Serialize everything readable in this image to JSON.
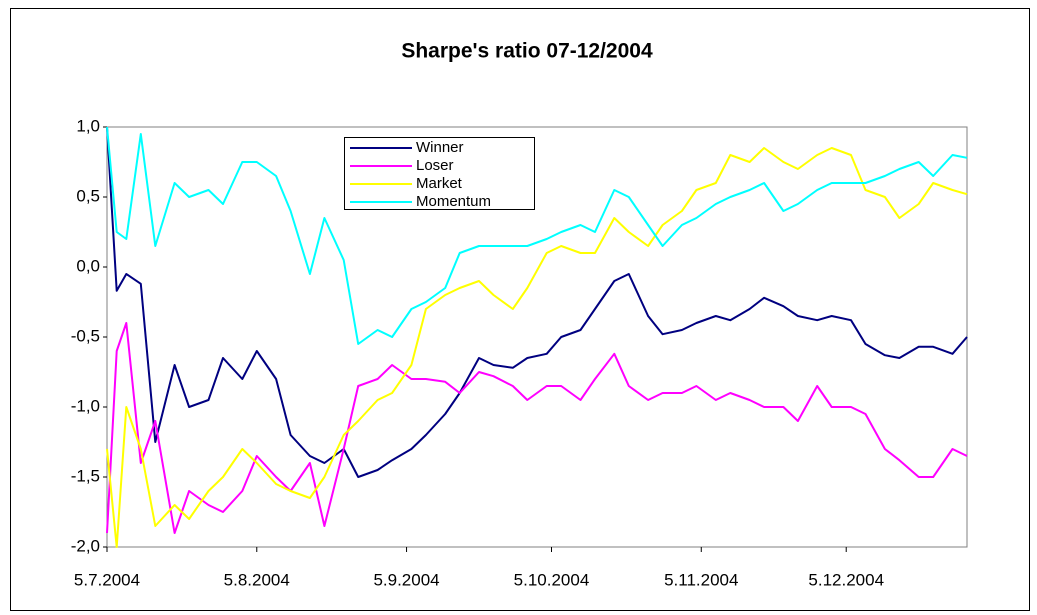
{
  "chart_data": {
    "type": "line",
    "title": "Sharpe's ratio 07-12/2004",
    "x": [
      "5.7.2004",
      "7.7.2004",
      "9.7.2004",
      "12.7.2004",
      "15.7.2004",
      "19.7.2004",
      "22.7.2004",
      "26.7.2004",
      "29.7.2004",
      "2.8.2004",
      "5.8.2004",
      "9.8.2004",
      "12.8.2004",
      "16.8.2004",
      "19.8.2004",
      "23.8.2004",
      "26.8.2004",
      "30.8.2004",
      "2.9.2004",
      "6.9.2004",
      "9.9.2004",
      "13.9.2004",
      "16.9.2004",
      "20.9.2004",
      "23.9.2004",
      "27.9.2004",
      "30.9.2004",
      "4.10.2004",
      "7.10.2004",
      "11.10.2004",
      "14.10.2004",
      "18.10.2004",
      "21.10.2004",
      "25.10.2004",
      "28.10.2004",
      "1.11.2004",
      "4.11.2004",
      "8.11.2004",
      "11.11.2004",
      "15.11.2004",
      "18.11.2004",
      "22.11.2004",
      "25.11.2004",
      "29.11.2004",
      "2.12.2004",
      "6.12.2004",
      "9.12.2004",
      "13.12.2004",
      "16.12.2004",
      "20.12.2004",
      "23.12.2004",
      "27.12.2004",
      "30.12.2004"
    ],
    "series": [
      {
        "name": "Winner",
        "color": "#000080",
        "values": [
          1.0,
          -0.17,
          -0.05,
          -0.12,
          -1.25,
          -0.7,
          -1.0,
          -0.95,
          -0.65,
          -0.8,
          -0.6,
          -0.8,
          -1.2,
          -1.35,
          -1.4,
          -1.3,
          -1.5,
          -1.45,
          -1.38,
          -1.3,
          -1.2,
          -1.05,
          -0.9,
          -0.65,
          -0.7,
          -0.72,
          -0.65,
          -0.62,
          -0.5,
          -0.45,
          -0.3,
          -0.1,
          -0.05,
          -0.35,
          -0.48,
          -0.45,
          -0.4,
          -0.35,
          -0.38,
          -0.3,
          -0.22,
          -0.28,
          -0.35,
          -0.38,
          -0.35,
          -0.38,
          -0.55,
          -0.63,
          -0.65,
          -0.57,
          -0.57,
          -0.62,
          -0.5
        ]
      },
      {
        "name": "Loser",
        "color": "#ff00ff",
        "values": [
          -1.9,
          -0.6,
          -0.4,
          -1.4,
          -1.1,
          -1.9,
          -1.6,
          -1.7,
          -1.75,
          -1.6,
          -1.35,
          -1.5,
          -1.6,
          -1.4,
          -1.85,
          -1.3,
          -0.85,
          -0.8,
          -0.7,
          -0.8,
          -0.8,
          -0.82,
          -0.9,
          -0.75,
          -0.78,
          -0.85,
          -0.95,
          -0.85,
          -0.85,
          -0.95,
          -0.8,
          -0.62,
          -0.85,
          -0.95,
          -0.9,
          -0.9,
          -0.85,
          -0.95,
          -0.9,
          -0.95,
          -1.0,
          -1.0,
          -1.1,
          -0.85,
          -1.0,
          -1.0,
          -1.05,
          -1.3,
          -1.38,
          -1.5,
          -1.5,
          -1.3,
          -1.35
        ]
      },
      {
        "name": "Market",
        "color": "#ffff00",
        "values": [
          -1.3,
          -2.0,
          -1.0,
          -1.3,
          -1.85,
          -1.7,
          -1.8,
          -1.6,
          -1.5,
          -1.3,
          -1.4,
          -1.55,
          -1.6,
          -1.65,
          -1.5,
          -1.2,
          -1.1,
          -0.95,
          -0.9,
          -0.7,
          -0.3,
          -0.2,
          -0.15,
          -0.1,
          -0.2,
          -0.3,
          -0.15,
          0.1,
          0.15,
          0.1,
          0.1,
          0.35,
          0.25,
          0.15,
          0.3,
          0.4,
          0.55,
          0.6,
          0.8,
          0.75,
          0.85,
          0.75,
          0.7,
          0.8,
          0.85,
          0.8,
          0.55,
          0.5,
          0.35,
          0.45,
          0.6,
          0.55,
          0.52
        ]
      },
      {
        "name": "Momentum",
        "color": "#00ffff",
        "values": [
          1.0,
          0.25,
          0.2,
          0.95,
          0.15,
          0.6,
          0.5,
          0.55,
          0.45,
          0.75,
          0.75,
          0.65,
          0.4,
          -0.05,
          0.35,
          0.05,
          -0.55,
          -0.45,
          -0.5,
          -0.3,
          -0.25,
          -0.15,
          0.1,
          0.15,
          0.15,
          0.15,
          0.15,
          0.2,
          0.25,
          0.3,
          0.25,
          0.55,
          0.5,
          0.3,
          0.15,
          0.3,
          0.35,
          0.45,
          0.5,
          0.55,
          0.6,
          0.4,
          0.45,
          0.55,
          0.6,
          0.6,
          0.6,
          0.65,
          0.7,
          0.75,
          0.65,
          0.8,
          0.78
        ]
      }
    ],
    "xlim": [
      "5.7.2004",
      "30.12.2004"
    ],
    "xticks": [
      "5.7.2004",
      "5.8.2004",
      "5.9.2004",
      "5.10.2004",
      "5.11.2004",
      "5.12.2004"
    ],
    "ylim": [
      -2,
      1
    ],
    "yticks": [
      {
        "value": -2,
        "label": "-2,0"
      },
      {
        "value": -1.5,
        "label": "-1,5"
      },
      {
        "value": -1,
        "label": "-1,0"
      },
      {
        "value": -0.5,
        "label": "-0,5"
      },
      {
        "value": 0,
        "label": "0,0"
      },
      {
        "value": 0.5,
        "label": "0,5"
      },
      {
        "value": 1,
        "label": "1,0"
      }
    ],
    "grid": false,
    "legend": "top-center"
  }
}
